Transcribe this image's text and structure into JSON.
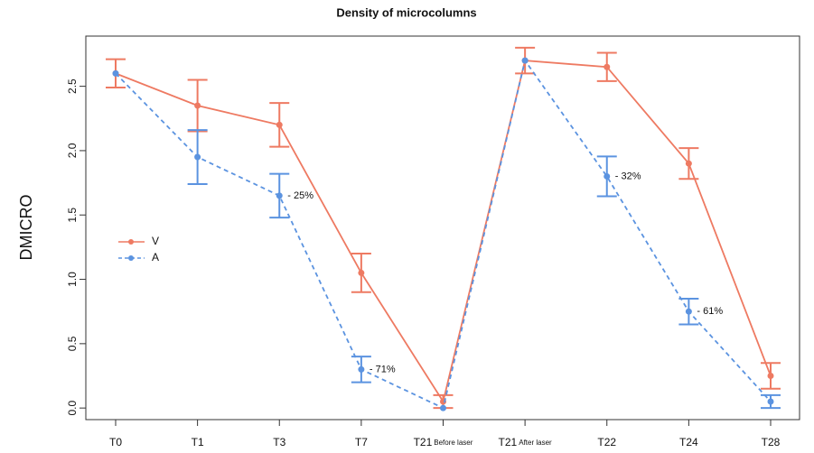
{
  "chart_data": {
    "type": "line",
    "title": "Density of microcolumns",
    "y_label": "DMICRO",
    "categories": [
      "T0",
      "T1",
      "T3",
      "T7",
      "T21",
      "T21",
      "T22",
      "T24",
      "T28"
    ],
    "category_notes": [
      null,
      null,
      null,
      null,
      "Before laser",
      "After laser",
      null,
      null,
      null
    ],
    "series": [
      {
        "name": "V",
        "color": "#ee7a62",
        "dashed": false,
        "values": [
          2.6,
          2.35,
          2.2,
          1.05,
          0.05,
          2.7,
          2.65,
          1.9,
          0.25
        ],
        "errors": [
          0.11,
          0.2,
          0.17,
          0.15,
          0.05,
          0.1,
          0.11,
          0.12,
          0.1
        ]
      },
      {
        "name": "A",
        "color": "#5b93e0",
        "dashed": true,
        "values": [
          2.6,
          1.95,
          1.65,
          0.3,
          0,
          2.7,
          1.8,
          0.75,
          0.05
        ],
        "errors": [
          0,
          0.21,
          0.17,
          0.1,
          0,
          0,
          0.155,
          0.1,
          0.05
        ],
        "value_annotations": [
          null,
          null,
          "- 25%",
          "- 71%",
          null,
          null,
          "- 32%",
          "- 61%",
          null
        ]
      }
    ],
    "ylim": [
      -0.09,
      2.89
    ],
    "yticks": [
      {
        "value": 0,
        "label": "0.0"
      },
      0.5,
      {
        "value": 1,
        "label": "1.0"
      },
      1.5,
      {
        "value": 2,
        "label": "2.0"
      },
      2.5
    ],
    "legend": "left"
  }
}
